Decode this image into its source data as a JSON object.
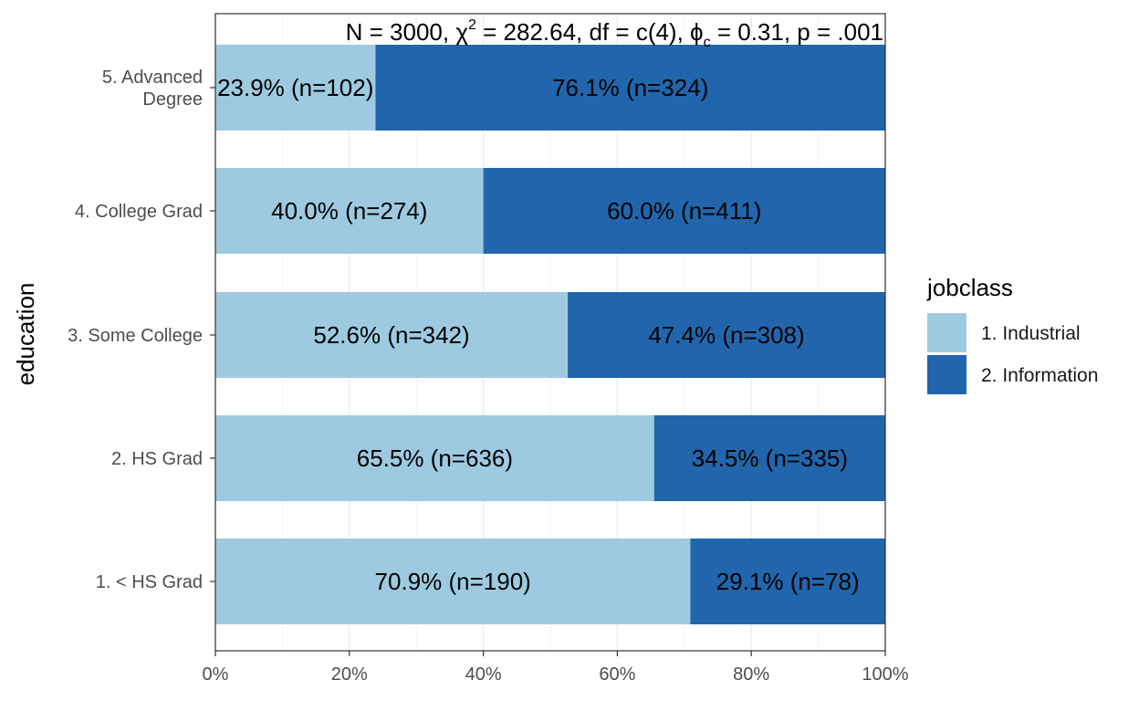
{
  "chart_data": {
    "type": "bar",
    "orientation": "horizontal",
    "stacked": true,
    "normalized": true,
    "title": "",
    "subtitle": {
      "n": "N",
      "n_value": "3000",
      "chi": "χ",
      "chi_sup": "2",
      "chi_value": "282.64",
      "df": "df",
      "df_value": "c(4)",
      "phi": "ϕ",
      "phi_sub": "c",
      "phi_value": "0.31",
      "p": "p",
      "p_value": ".001"
    },
    "xlabel": "",
    "ylabel": "education",
    "xlim": [
      0,
      100
    ],
    "x_ticks": [
      "0%",
      "20%",
      "40%",
      "60%",
      "80%",
      "100%"
    ],
    "x_tick_values": [
      0,
      20,
      40,
      60,
      80,
      100
    ],
    "categories": [
      "5. Advanced Degree",
      "4. College Grad",
      "3. Some College",
      "2. HS Grad",
      "1. < HS Grad"
    ],
    "category_lines": [
      [
        "5. Advanced",
        "Degree"
      ],
      [
        "4. College Grad"
      ],
      [
        "3. Some College"
      ],
      [
        "2. HS Grad"
      ],
      [
        "1. < HS Grad"
      ]
    ],
    "series": [
      {
        "name": "1. Industrial",
        "color": "#9ECAE1",
        "values": [
          23.9,
          40.0,
          52.6,
          65.5,
          70.9
        ],
        "labels": [
          "23.9% (n=102)",
          "40.0% (n=274)",
          "52.6% (n=342)",
          "65.5% (n=636)",
          "70.9% (n=190)"
        ]
      },
      {
        "name": "2. Information",
        "color": "#2166AC",
        "values": [
          76.1,
          60.0,
          47.4,
          34.5,
          29.1
        ],
        "labels": [
          "76.1% (n=324)",
          "60.0% (n=411)",
          "47.4% (n=308)",
          "34.5% (n=335)",
          "29.1% (n=78)"
        ]
      }
    ],
    "legend": {
      "title": "jobclass",
      "position": "right"
    },
    "grid": true
  }
}
